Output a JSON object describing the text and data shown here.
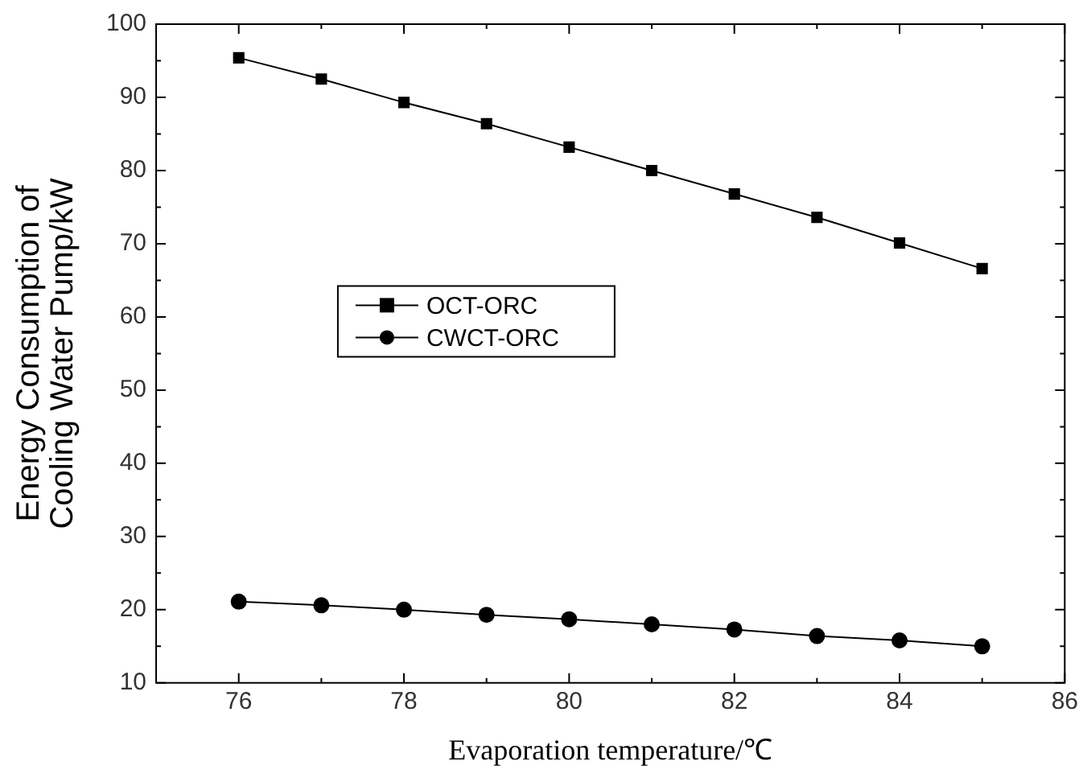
{
  "chart_data": {
    "type": "line",
    "xlabel": "Evaporation temperature/℃",
    "ylabel": "Energy Consumption of\nCooling Water Pump/kW",
    "x": [
      76,
      77,
      78,
      79,
      80,
      81,
      82,
      83,
      84,
      85
    ],
    "series": [
      {
        "name": "OCT-ORC",
        "color": "#000000",
        "marker": "square",
        "values": [
          95.4,
          92.5,
          89.3,
          86.4,
          83.2,
          80.0,
          76.8,
          73.6,
          70.1,
          66.6
        ]
      },
      {
        "name": "CWCT-ORC",
        "color": "#000000",
        "marker": "circle",
        "values": [
          21.1,
          20.6,
          20.0,
          19.3,
          18.7,
          18.0,
          17.3,
          16.4,
          15.8,
          15.0
        ]
      }
    ],
    "xlim": [
      75,
      86
    ],
    "xticks": [
      76,
      78,
      80,
      82,
      84,
      86
    ],
    "ylim": [
      10,
      100
    ],
    "yticks": [
      10,
      20,
      30,
      40,
      50,
      60,
      70,
      80,
      90,
      100
    ],
    "grid": false,
    "legend": "center left",
    "line_style": "solid"
  }
}
